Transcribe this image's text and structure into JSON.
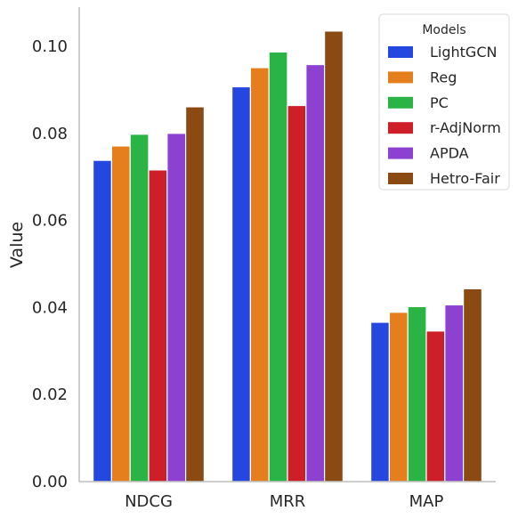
{
  "chart_data": {
    "type": "bar",
    "ylabel": "Value",
    "xlabel": "",
    "ylim": [
      0,
      0.109
    ],
    "yticks": [
      "0.00",
      "0.02",
      "0.04",
      "0.06",
      "0.08",
      "0.10"
    ],
    "ytick_values": [
      0,
      0.02,
      0.04,
      0.06,
      0.08,
      0.1
    ],
    "categories": [
      "NDCG",
      "MRR",
      "MAP"
    ],
    "legend": {
      "title": "Models",
      "position": "top-right"
    },
    "grid": false,
    "series": [
      {
        "name": "LightGCN",
        "color": "#2448df",
        "values": [
          0.0738,
          0.0907,
          0.0366
        ]
      },
      {
        "name": "Reg",
        "color": "#e57f1e",
        "values": [
          0.0771,
          0.0951,
          0.0389
        ]
      },
      {
        "name": "PC",
        "color": "#2ab446",
        "values": [
          0.0798,
          0.0987,
          0.0402
        ]
      },
      {
        "name": "r-AdjNorm",
        "color": "#ce1f28",
        "values": [
          0.0716,
          0.0864,
          0.0346
        ]
      },
      {
        "name": "APDA",
        "color": "#8d41d1",
        "values": [
          0.08,
          0.0958,
          0.0406
        ]
      },
      {
        "name": "Hetro-Fair",
        "color": "#8b4a12",
        "values": [
          0.0861,
          0.1035,
          0.0443
        ]
      }
    ]
  }
}
